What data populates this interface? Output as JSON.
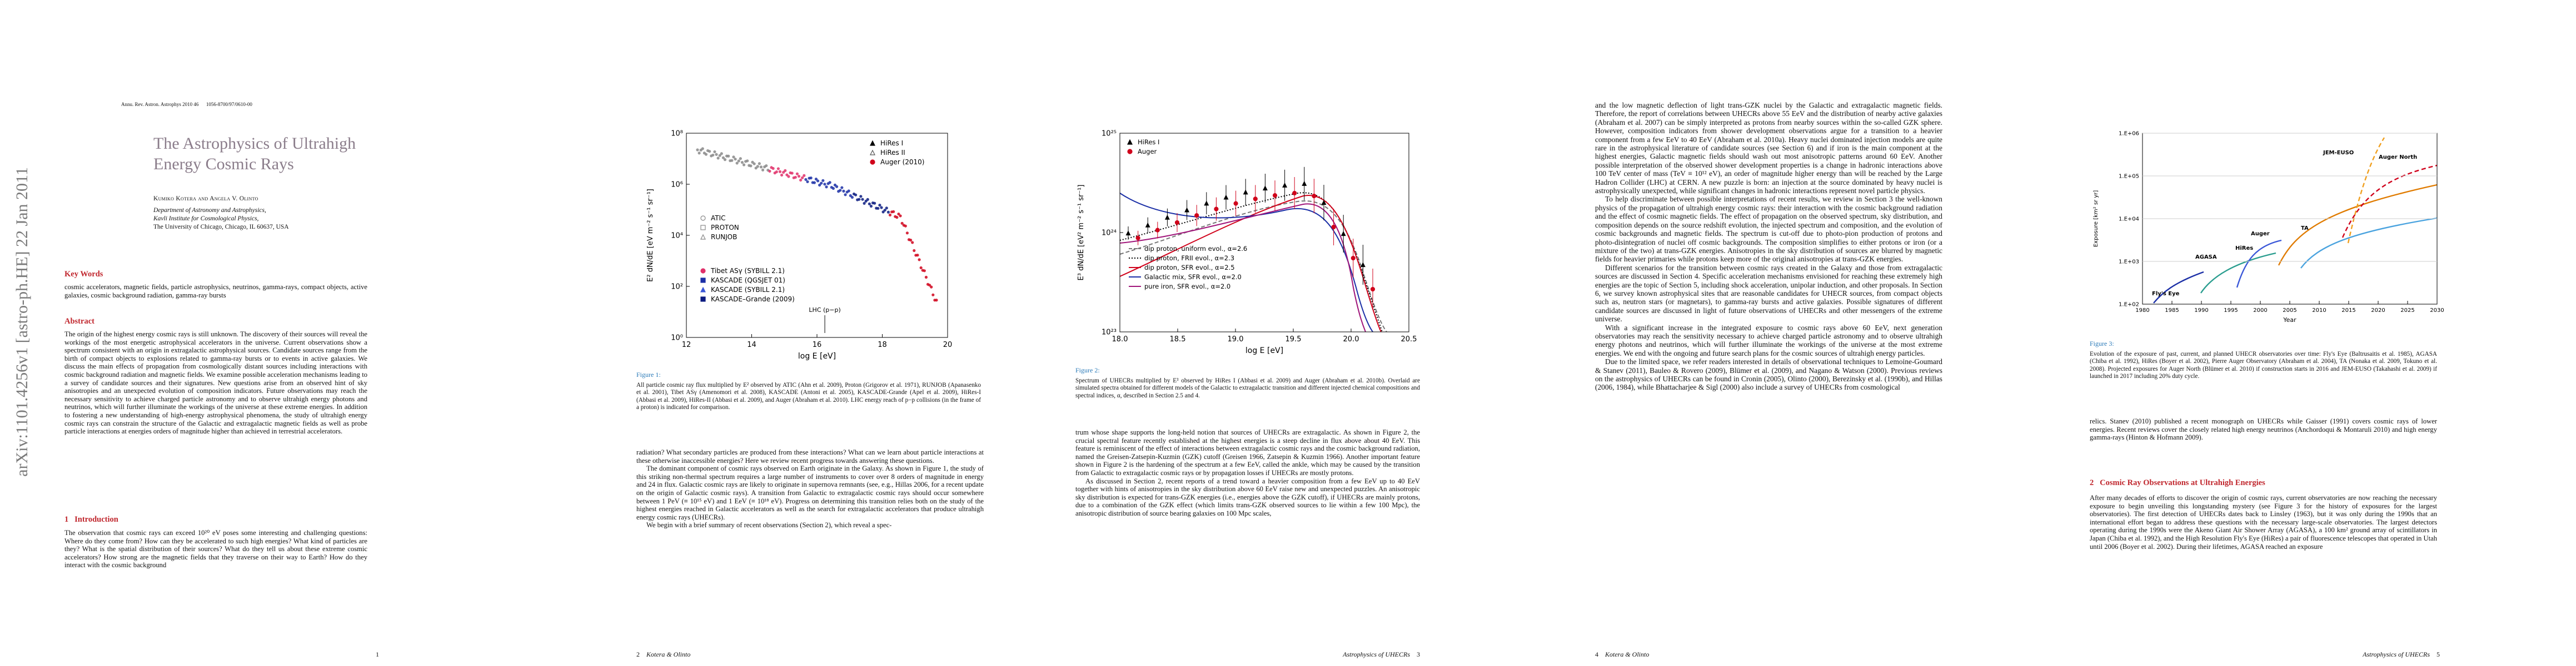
{
  "sidebar": "arXiv:1101.4256v1  [astro-ph.HE]  22 Jan 2011",
  "page1": {
    "running_header": "Annu. Rev. Astron. Astrophys 2010 46      1056-8700/97/0610-00",
    "title": "The Astrophysics of Ultrahigh Energy Cosmic Rays",
    "authors": "Kumiko Kotera and Angela V. Olinto",
    "affiliation": [
      "Department of Astronomy and Astrophysics,",
      "Kavli Institute for Cosmological Physics,",
      "The University of Chicago, Chicago, IL 60637, USA"
    ],
    "keywords_heading": "Key Words",
    "keywords": "cosmic accelerators, magnetic fields, particle astrophysics, neutrinos, gamma-rays, compact objects, active galaxies, cosmic background radiation, gamma-ray bursts",
    "abstract_heading": "Abstract",
    "abstract": "The origin of the highest energy cosmic rays is still unknown. The discovery of their sources will reveal the workings of the most energetic astrophysical accelerators in the universe. Current observations show a spectrum consistent with an origin in extragalactic astrophysical sources. Candidate sources range from the birth of compact objects to explosions related to gamma-ray bursts or to events in active galaxies. We discuss the main effects of propagation from cosmologically distant sources including interactions with cosmic background radiation and magnetic fields. We examine possible acceleration mechanisms leading to a survey of candidate sources and their signatures. New questions arise from an observed hint of sky anisotropies and an unexpected evolution of composition indicators. Future observations may reach the necessary sensitivity to achieve charged particle astronomy and to observe ultrahigh energy photons and neutrinos, which will further illuminate the workings of the universe at these extreme energies. In addition to fostering a new understanding of high-energy astrophysical phenomena, the study of ultrahigh energy cosmic rays can constrain the structure of the Galactic and extragalactic magnetic fields as well as probe particle interactions at energies orders of magnitude higher than achieved in terrestrial accelerators.",
    "section_number": "1",
    "section_title": "Introduction",
    "intro": "The observation that cosmic rays can exceed 10²⁰ eV poses some interesting and challenging questions: Where do they come from? How can they be accelerated to such high energies? What kind of particles are they? What is the spatial distribution of their sources? What do they tell us about these extreme cosmic accelerators? How strong are the magnetic fields that they traverse on their way to Earth? How do they interact with the cosmic background",
    "page_number": "1"
  },
  "page2": {
    "figure": {
      "xlabel": "log E [eV]",
      "ylabel": "E² dN/dE [eV m⁻² s⁻¹ sr⁻¹]",
      "xticks": [
        "12",
        "14",
        "16",
        "18",
        "20"
      ],
      "yticks": [
        "10⁰",
        "10²",
        "10⁴",
        "10⁶",
        "10⁸"
      ],
      "annotation": "LHC (p−p)",
      "legend": [
        {
          "name": "HiRes I",
          "color": "#000000",
          "marker": "triangle"
        },
        {
          "name": "HiRes II",
          "color": "#555555",
          "marker": "triangle-open"
        },
        {
          "name": "Auger (2010)",
          "color": "#d0021b",
          "marker": "circle"
        },
        {
          "name": "ATIC",
          "color": "#888888",
          "marker": "circle-open"
        },
        {
          "name": "PROTON",
          "color": "#888888",
          "marker": "square-open"
        },
        {
          "name": "RUNJOB",
          "color": "#888888",
          "marker": "triangle-open"
        },
        {
          "name": "Tibet ASγ (SYBILL 2.1)",
          "color": "#e0306a",
          "marker": "circle"
        },
        {
          "name": "KASCADE (QGSJET 01)",
          "color": "#1b2fa6",
          "marker": "square"
        },
        {
          "name": "KASCADE (SYBILL 2.1)",
          "color": "#3a57d8",
          "marker": "triangle"
        },
        {
          "name": "KASCADE–Grande (2009)",
          "color": "#0b1b80",
          "marker": "square"
        }
      ]
    },
    "caption_label": "Figure 1:",
    "caption": "All particle cosmic ray flux multiplied by E² observed by ATIC (Ahn et al. 2009), Proton (Grigorov et al. 1971), RUNJOB (Apanasenko et al. 2001), Tibet ASγ (Amenomori et al. 2008), KASCADE (Antoni et al. 2005), KASCADE-Grande (Apel et al. 2009), HiRes-I (Abbasi et al. 2009), HiRes-II (Abbasi et al. 2009), and Auger (Abraham et al. 2010). LHC energy reach of p−p collisions (in the frame of a proton) is indicated for comparison.",
    "paragraphs": [
      "radiation? What secondary particles are produced from these interactions? What can we learn about particle interactions at these otherwise inaccessible energies? Here we review recent progress towards answering these questions.",
      "The dominant component of cosmic rays observed on Earth originate in the Galaxy. As shown in Figure 1, the study of this striking non-thermal spectrum requires a large number of instruments to cover over 8 orders of magnitude in energy and 24 in flux. Galactic cosmic rays are likely to originate in supernova remnants (see, e.g., Hillas 2006, for a recent update on the origin of Galactic cosmic rays). A transition from Galactic to extragalactic cosmic rays should occur somewhere between 1 PeV (≡ 10¹⁵ eV) and 1 EeV (≡ 10¹⁸ eV). Progress on determining this transition relies both on the study of the highest energies reached in Galactic accelerators as well as the search for extragalactic accelerators that produce ultrahigh energy cosmic rays (UHECRs).",
      "We begin with a brief summary of recent observations (Section 2), which reveal a spec-"
    ],
    "page_number": "2",
    "running_title": "Kotera & Olinto"
  },
  "page3": {
    "figure": {
      "xlabel": "log E [eV]",
      "ylabel": "E³ dN/dE [eV² m⁻² s⁻¹ sr⁻¹]",
      "xticks": [
        "18.0",
        "18.5",
        "19.0",
        "19.5",
        "20.0",
        "20.5"
      ],
      "yticks": [
        "10²³",
        "10²⁴",
        "10²⁵"
      ],
      "legend": [
        {
          "name": "HiRes I",
          "color": "#000000",
          "marker": "triangle"
        },
        {
          "name": "Auger",
          "color": "#d0021b",
          "marker": "circle"
        },
        {
          "name": "dip proton, uniform evol., α=2.6",
          "color": "#777777",
          "marker": "dash"
        },
        {
          "name": "dip proton, FRII evol., α=2.3",
          "color": "#000000",
          "marker": "dot"
        },
        {
          "name": "dip proton, SFR evol., α=2.5",
          "color": "#d0021b",
          "marker": "line"
        },
        {
          "name": "Galactic mix, SFR evol., α=2.0",
          "color": "#1b2fa6",
          "marker": "line"
        },
        {
          "name": "pure iron, SFR evol., α=2.0",
          "color": "#a0157a",
          "marker": "line"
        }
      ]
    },
    "caption_label": "Figure 2:",
    "caption": "Spectrum of UHECRs multiplied by E³ observed by HiRes I (Abbasi et al. 2009) and Auger (Abraham et al. 2010b). Overlaid are simulated spectra obtained for different models of the Galactic to extragalactic transition and different injected chemical compositions and spectral indices, α, described in Section 2.5 and 4.",
    "paragraphs": [
      "trum whose shape supports the long-held notion that sources of UHECRs are extragalactic. As shown in Figure 2, the crucial spectral feature recently established at the highest energies is a steep decline in flux above about 40 EeV. This feature is reminiscent of the effect of interactions between extragalactic cosmic rays and the cosmic background radiation, named the Greisen-Zatsepin-Kuzmin (GZK) cutoff (Greisen 1966, Zatsepin & Kuzmin 1966). Another important feature shown in Figure 2 is the hardening of the spectrum at a few EeV, called the ankle, which may be caused by the transition from Galactic to extragalactic cosmic rays or by propagation losses if UHECRs are mostly protons.",
      "As discussed in Section 2, recent reports of a trend toward a heavier composition from a few EeV up to 40 EeV together with hints of anisotropies in the sky distribution above 60 EeV raise new and unexpected puzzles. An anisotropic sky distribution is expected for trans-GZK energies (i.e., energies above the GZK cutoff), if UHECRs are mainly protons, due to a combination of the GZK effect (which limits trans-GZK observed sources to lie within a few 100 Mpc), the anisotropic distribution of source bearing galaxies on 100 Mpc scales,"
    ],
    "running_title": "Astrophysics of UHECRs",
    "page_number": "3"
  },
  "page4": {
    "paragraphs": [
      "and the low magnetic deflection of light trans-GZK nuclei by the Galactic and extragalactic magnetic fields. Therefore, the report of correlations between UHECRs above 55 EeV and the distribution of nearby active galaxies (Abraham et al. 2007) can be simply interpreted as protons from nearby sources within the so-called GZK sphere. However, composition indicators from shower development observations argue for a transition to a heavier component from a few EeV to 40 EeV (Abraham et al. 2010a). Heavy nuclei dominated injection models are quite rare in the astrophysical literature of candidate sources (see Section 6) and if iron is the main component at the highest energies, Galactic magnetic fields should wash out most anisotropic patterns around 60 EeV. Another possible interpretation of the observed shower development properties is a change in hadronic interactions above 100 TeV center of mass (TeV ≡ 10¹² eV), an order of magnitude higher energy than will be reached by the Large Hadron Collider (LHC) at CERN. A new puzzle is born: an injection at the source dominated by heavy nuclei is astrophysically unexpected, while significant changes in hadronic interactions represent novel particle physics.",
      "To help discriminate between possible interpretations of recent results, we review in Section 3 the well-known physics of the propagation of ultrahigh energy cosmic rays: their interaction with the cosmic background radiation and the effect of cosmic magnetic fields. The effect of propagation on the observed spectrum, sky distribution, and composition depends on the source redshift evolution, the injected spectrum and composition, and the evolution of cosmic backgrounds and magnetic fields. The spectrum is cut-off due to photo-pion production of protons and photo-disintegration of nuclei off cosmic backgrounds. The composition simplifies to either protons or iron (or a mixture of the two) at trans-GZK energies. Anisotropies in the sky distribution of sources are blurred by magnetic fields for heavier primaries while protons keep more of the original anisotropies at trans-GZK energies.",
      "Different scenarios for the transition between cosmic rays created in the Galaxy and those from extragalactic sources are discussed in Section 4. Specific acceleration mechanisms envisioned for reaching these extremely high energies are the topic of Section 5, including shock acceleration, unipolar induction, and other proposals. In Section 6, we survey known astrophysical sites that are reasonable candidates for UHECR sources, from compact objects such as, neutron stars (or magnetars), to gamma-ray bursts and active galaxies. Possible signatures of different candidate sources are discussed in light of future observations of UHECRs and other messengers of the extreme universe.",
      "With a significant increase in the integrated exposure to cosmic rays above 60 EeV, next generation observatories may reach the sensitivity necessary to achieve charged particle astronomy and to observe ultrahigh energy photons and neutrinos, which will further illuminate the workings of the universe at the most extreme energies. We end with the ongoing and future search plans for the cosmic sources of ultrahigh energy particles.",
      "Due to the limited space, we refer readers interested in details of observational techniques to Lemoine-Goumard & Stanev (2011), Bauleo & Rovero (2009), Blümer et al. (2009), and Nagano & Watson (2000). Previous reviews on the astrophysics of UHECRs can be found in Cronin (2005), Olinto (2000), Berezinsky et al. (1990b), and Hillas (2006, 1984), while Bhattacharjee & Sigl (2000) also include a survey of UHECRs from cosmological"
    ],
    "page_number": "4",
    "running_title": "Kotera & Olinto"
  },
  "page5": {
    "figure": {
      "xlabel": "Year",
      "ylabel": "Exposure [km² sr yr]",
      "xticks": [
        "1980",
        "1985",
        "1990",
        "1995",
        "2000",
        "2005",
        "2010",
        "2015",
        "2020",
        "2025",
        "2030"
      ],
      "yticks": [
        "1.E+02",
        "1.E+03",
        "1.E+04",
        "1.E+05",
        "1.E+06"
      ],
      "labels": [
        {
          "name": "Fly's Eye",
          "color": "#1b2fa6"
        },
        {
          "name": "AGASA",
          "color": "#2a9d8f"
        },
        {
          "name": "HiRes",
          "color": "#3a57d8"
        },
        {
          "name": "Auger",
          "color": "#e07b00"
        },
        {
          "name": "TA",
          "color": "#4aa3df"
        },
        {
          "name": "Auger North",
          "color": "#d0021b"
        },
        {
          "name": "JEM-EUSO",
          "color": "#f0a020"
        }
      ]
    },
    "caption_label": "Figure 3:",
    "caption": "Evolution of the exposure of past, current, and planned UHECR observatories over time: Fly's Eye (Baltrusaitis et al. 1985), AGASA (Chiba et al. 1992), HiRes (Boyer et al. 2002), Pierre Auger Observatory (Abraham et al. 2004), TA (Nonaka et al. 2009, Tokuno et al. 2008). Projected exposures for Auger North (Blümer et al. 2010) if construction starts in 2016 and JEM-EUSO (Takahashi et al. 2009) if launched in 2017 including 20% duty cycle.",
    "paragraphs": [
      "relics. Stanev (2010) published a recent monograph on UHECRs while Gaisser (1991) covers cosmic rays of lower energies. Recent reviews cover the closely related high energy neutrinos (Anchordoqui & Montaruli 2010) and high energy gamma-rays (Hinton & Hofmann 2009)."
    ],
    "section_number": "2",
    "section_title": "Cosmic Ray Observations at Ultrahigh Energies",
    "section_paragraphs": [
      "After many decades of efforts to discover the origin of cosmic rays, current observatories are now reaching the necessary exposure to begin unveiling this longstanding mystery (see Figure 3 for the history of exposures for the largest observatories). The first detection of UHECRs dates back to Linsley (1963), but it was only during the 1990s that an international effort began to address these questions with the necessary large-scale observatories. The largest detectors operating during the 1990s were the Akeno Giant Air Shower Array (AGASA), a 100 km² ground array of scintillators in Japan (Chiba et al. 1992), and the High Resolution Fly's Eye (HiRes) a pair of fluorescence telescopes that operated in Utah until 2006 (Boyer et al. 2002). During their lifetimes, AGASA reached an exposure"
    ],
    "running_title": "Astrophysics of UHECRs",
    "page_number": "5"
  }
}
